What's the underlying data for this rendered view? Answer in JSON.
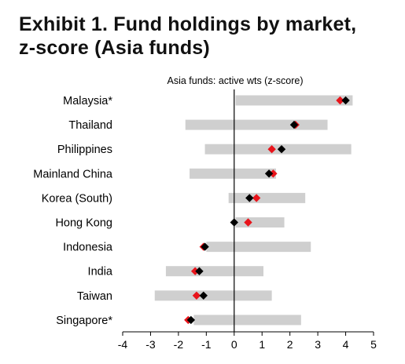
{
  "exhibit": {
    "title_line1": "Exhibit 1. Fund holdings by market,",
    "title_line2": "z-score (Asia funds)"
  },
  "chart_data": {
    "type": "range-dot",
    "title": "Asia funds: active wts (z-score)",
    "categories": [
      "Malaysia*",
      "Thailand",
      "Philippines",
      "Mainland China",
      "Korea (South)",
      "Hong Kong",
      "Indonesia",
      "India",
      "Taiwan",
      "Singapore*"
    ],
    "series": [
      {
        "kind": "range",
        "color": "#cfcfcf",
        "low": [
          0.05,
          -1.75,
          -1.05,
          -1.6,
          -0.2,
          0.05,
          -1.0,
          -2.45,
          -2.85,
          -1.45
        ],
        "high": [
          4.25,
          3.35,
          4.2,
          1.5,
          2.55,
          1.8,
          2.75,
          1.05,
          1.35,
          2.4
        ]
      },
      {
        "kind": "point",
        "color": "#e8141b",
        "values": [
          3.8,
          2.2,
          1.35,
          1.4,
          0.8,
          0.5,
          -1.1,
          -1.4,
          -1.35,
          -1.65
        ]
      },
      {
        "kind": "point",
        "color": "#000000",
        "values": [
          4.0,
          2.15,
          1.7,
          1.25,
          0.55,
          0.0,
          -1.05,
          -1.25,
          -1.1,
          -1.55
        ]
      }
    ],
    "xlim": [
      -4,
      5
    ],
    "xticks": [
      "-4",
      "-3",
      "-2",
      "-1",
      "0",
      "1",
      "2",
      "3",
      "4",
      "5"
    ],
    "zero_line": true,
    "grid": false
  }
}
